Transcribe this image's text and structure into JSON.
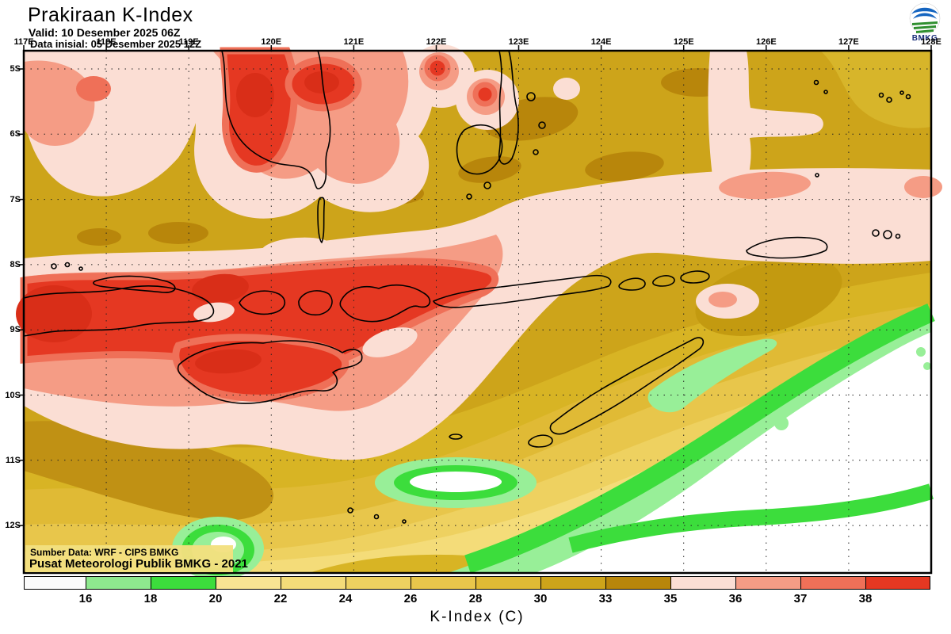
{
  "header": {
    "title": "Prakiraan K-Index",
    "valid": "Valid: 10 Desember 2025 06Z",
    "init": "Data inisial: 05 Desember 2025 12Z",
    "logo_label": "BMKG"
  },
  "axes": {
    "lon": [
      "117E",
      "118E",
      "119E",
      "120E",
      "121E",
      "122E",
      "123E",
      "124E",
      "125E",
      "126E",
      "127E",
      "128E"
    ],
    "lat": [
      "5S",
      "6S",
      "7S",
      "8S",
      "9S",
      "10S",
      "11S",
      "12S"
    ]
  },
  "source": {
    "line1": "Sumber Data: WRF - CIPS BMKG",
    "line2": "Pusat Meteorologi Publik BMKG -  2021"
  },
  "legend": {
    "title": "K-Index (C)",
    "ticks": [
      "16",
      "18",
      "20",
      "22",
      "24",
      "26",
      "28",
      "30",
      "33",
      "35",
      "36",
      "37",
      "38"
    ],
    "colors": [
      "#fbfbfb",
      "#8ee88e",
      "#3cdd3c",
      "#f8e493",
      "#f4dc79",
      "#eed160",
      "#e8c64b",
      "#e0ba35",
      "#cda41a",
      "#b8860b",
      "#fbded4",
      "#f59c85",
      "#ef7058",
      "#e53822"
    ]
  },
  "chart_data": {
    "type": "heatmap",
    "title": "Prakiraan K-Index",
    "valid_time": "10 Desember 2025 06Z",
    "initial_time": "05 Desember 2025 12Z",
    "x_ticks": [
      "117E",
      "118E",
      "119E",
      "120E",
      "121E",
      "122E",
      "123E",
      "124E",
      "125E",
      "126E",
      "127E",
      "128E"
    ],
    "y_ticks": [
      "5S",
      "6S",
      "7S",
      "8S",
      "9S",
      "10S",
      "11S",
      "12S"
    ],
    "legend_title": "K-Index (C)",
    "levels": [
      16,
      18,
      20,
      22,
      24,
      26,
      28,
      30,
      33,
      35,
      36,
      37,
      38
    ],
    "level_colors": [
      "#fbfbfb",
      "#8ee88e",
      "#3cdd3c",
      "#f8e493",
      "#f4dc79",
      "#eed160",
      "#e8c64b",
      "#e0ba35",
      "#cda41a",
      "#b8860b",
      "#fbded4",
      "#f59c85",
      "#ef7058",
      "#e53822"
    ],
    "legend_position": "bottom",
    "grid": "dotted"
  }
}
